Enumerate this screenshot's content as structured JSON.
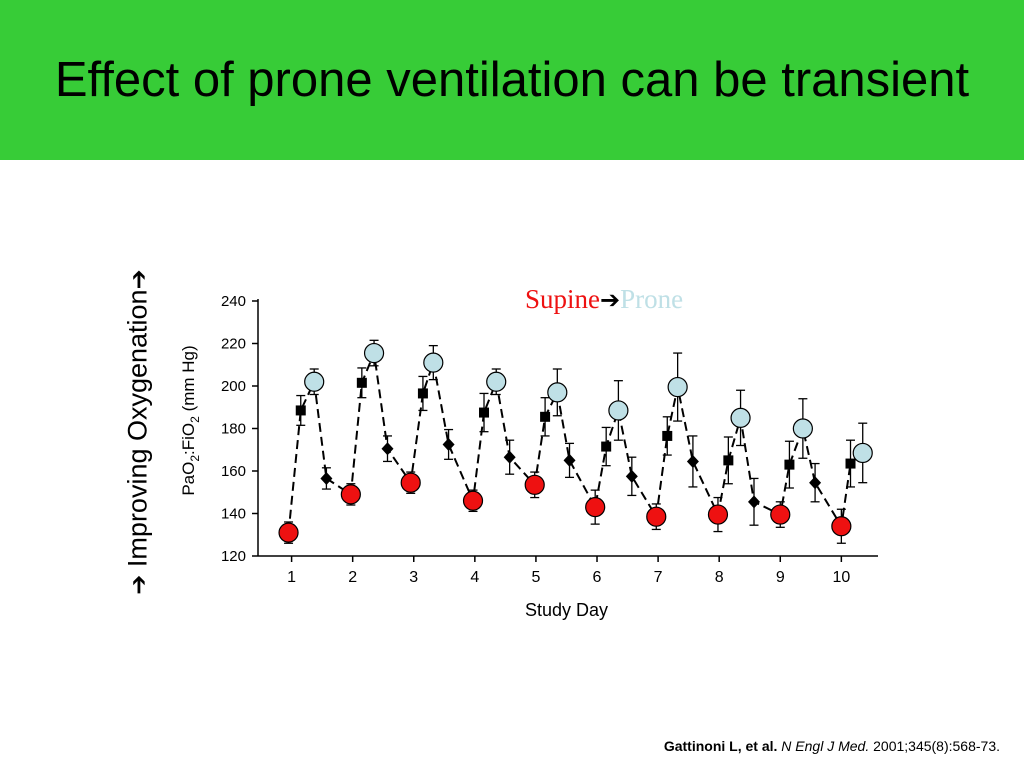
{
  "slide": {
    "title": "Effect of prone ventilation can be transient",
    "side_label_text": "Improving Oxygenation",
    "side_label_arrow": "➔",
    "citation_authors": "Gattinoni L, et al.",
    "citation_journal": "N Engl J Med.",
    "citation_rest": "2001;345(8):568-73.",
    "colors": {
      "title_bar": "#37cc37",
      "supine": "#ee1111",
      "prone": "#bfe0e6"
    }
  },
  "chart_data": {
    "type": "scatter",
    "title": "",
    "xlabel": "Study Day",
    "ylabel_parts": [
      "PaO",
      "2",
      ":FiO",
      "2",
      " (mm Hg)"
    ],
    "ylim": [
      120,
      240
    ],
    "xlim": [
      0.45,
      10.6
    ],
    "yticks": [
      120,
      140,
      160,
      180,
      200,
      220,
      240
    ],
    "xticks": [
      1,
      2,
      3,
      4,
      5,
      6,
      7,
      8,
      9,
      10
    ],
    "grid": false,
    "legend": {
      "placement": "top-right",
      "supine": "Supine",
      "arrow": "➔",
      "prone": "Prone"
    },
    "series": [
      {
        "name": "Supine",
        "marker": "circle",
        "color": "#ee1111",
        "x": [
          0.95,
          1.97,
          2.95,
          3.97,
          4.98,
          5.97,
          6.97,
          7.98,
          9.0,
          10.0
        ],
        "y": [
          131,
          149,
          154.5,
          146,
          153.5,
          143,
          138.5,
          139.5,
          139.5,
          134
        ],
        "err": [
          5,
          5,
          5,
          5,
          6,
          8,
          6,
          8,
          6,
          8
        ]
      },
      {
        "name": "Prone",
        "marker": "circle",
        "color": "#bfe0e6",
        "x": [
          1.37,
          2.35,
          3.32,
          4.35,
          5.35,
          6.35,
          7.32,
          8.35,
          9.37,
          10.35
        ],
        "y": [
          202,
          215.5,
          211,
          202,
          197,
          188.5,
          199.5,
          185,
          180,
          168.5
        ],
        "err": [
          6,
          6,
          8,
          6,
          11,
          14,
          16,
          13,
          14,
          14
        ]
      },
      {
        "marker": "square",
        "color": "#000000",
        "x": [
          1.15,
          2.15,
          3.15,
          4.15,
          5.15,
          6.15,
          7.15,
          8.15,
          9.15,
          10.15
        ],
        "y": [
          188.5,
          201.5,
          196.5,
          187.5,
          185.5,
          171.5,
          176.5,
          165,
          163,
          163.5
        ],
        "err": [
          7,
          7,
          8,
          9,
          9,
          9,
          9,
          11,
          11,
          11
        ]
      },
      {
        "marker": "diamond",
        "color": "#000000",
        "x": [
          1.57,
          2.57,
          3.57,
          4.57,
          5.55,
          6.57,
          7.57,
          8.57,
          9.57
        ],
        "y": [
          156.5,
          170.5,
          172.5,
          166.5,
          165,
          157.5,
          164.5,
          145.5,
          154.5
        ],
        "err": [
          5,
          6,
          7,
          8,
          8,
          9,
          12,
          11,
          9
        ]
      }
    ]
  }
}
